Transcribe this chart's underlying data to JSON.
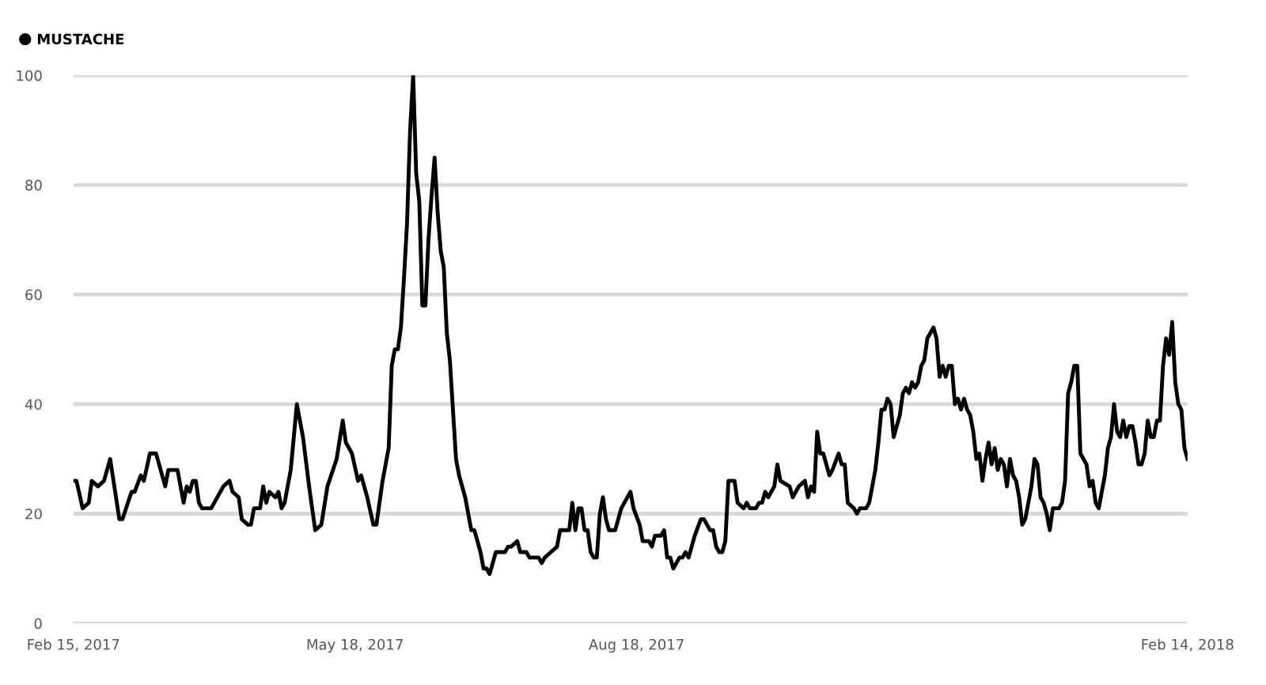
{
  "chart_data": {
    "type": "line",
    "x": [
      "2017-02-15",
      "2017-02-16",
      "2017-02-18",
      "2017-02-20",
      "2017-02-21",
      "2017-02-23",
      "2017-02-25",
      "2017-02-27",
      "2017-03-02",
      "2017-03-03",
      "2017-03-06",
      "2017-03-07",
      "2017-03-09",
      "2017-03-10",
      "2017-03-12",
      "2017-03-14",
      "2017-03-17",
      "2017-03-18",
      "2017-03-21",
      "2017-03-23",
      "2017-03-24",
      "2017-03-25",
      "2017-03-26",
      "2017-03-27",
      "2017-03-28",
      "2017-03-29",
      "2017-04-01",
      "2017-04-05",
      "2017-04-07",
      "2017-04-08",
      "2017-04-10",
      "2017-04-11",
      "2017-04-13",
      "2017-04-14",
      "2017-04-15",
      "2017-04-17",
      "2017-04-18",
      "2017-04-19",
      "2017-04-20",
      "2017-04-22",
      "2017-04-23",
      "2017-04-24",
      "2017-04-25",
      "2017-04-27",
      "2017-04-29",
      "2017-05-01",
      "2017-05-03",
      "2017-05-05",
      "2017-05-07",
      "2017-05-09",
      "2017-05-12",
      "2017-05-14",
      "2017-05-15",
      "2017-05-17",
      "2017-05-19",
      "2017-05-20",
      "2017-05-22",
      "2017-05-24",
      "2017-05-25",
      "2017-05-27",
      "2017-05-29",
      "2017-05-30",
      "2017-05-31",
      "2017-06-01",
      "2017-06-02",
      "2017-06-03",
      "2017-06-04",
      "2017-06-05",
      "2017-06-06",
      "2017-06-07",
      "2017-06-08",
      "2017-06-09",
      "2017-06-10",
      "2017-06-11",
      "2017-06-12",
      "2017-06-13",
      "2017-06-14",
      "2017-06-15",
      "2017-06-16",
      "2017-06-17",
      "2017-06-18",
      "2017-06-20",
      "2017-06-21",
      "2017-06-23",
      "2017-06-24",
      "2017-06-25",
      "2017-06-26",
      "2017-06-28",
      "2017-06-29",
      "2017-06-30",
      "2017-07-01",
      "2017-07-02",
      "2017-07-03",
      "2017-07-06",
      "2017-07-07",
      "2017-07-08",
      "2017-07-10",
      "2017-07-11",
      "2017-07-13",
      "2017-07-14",
      "2017-07-17",
      "2017-07-18",
      "2017-07-19",
      "2017-07-21",
      "2017-07-23",
      "2017-07-24",
      "2017-07-27",
      "2017-07-28",
      "2017-07-29",
      "2017-07-30",
      "2017-07-31",
      "2017-08-01",
      "2017-08-02",
      "2017-08-03",
      "2017-08-04",
      "2017-08-05",
      "2017-08-06",
      "2017-08-07",
      "2017-08-08",
      "2017-08-09",
      "2017-08-11",
      "2017-08-13",
      "2017-08-14",
      "2017-08-16",
      "2017-08-17",
      "2017-08-19",
      "2017-08-20",
      "2017-08-22",
      "2017-08-23",
      "2017-08-24",
      "2017-08-26",
      "2017-08-27",
      "2017-08-28",
      "2017-08-29",
      "2017-08-30",
      "2017-09-01",
      "2017-09-02",
      "2017-09-03",
      "2017-09-04",
      "2017-09-06",
      "2017-09-08",
      "2017-09-09",
      "2017-09-11",
      "2017-09-12",
      "2017-09-13",
      "2017-09-14",
      "2017-09-15",
      "2017-09-16",
      "2017-09-17",
      "2017-09-19",
      "2017-09-20",
      "2017-09-22",
      "2017-09-23",
      "2017-09-24",
      "2017-09-26",
      "2017-09-27",
      "2017-09-28",
      "2017-09-29",
      "2017-09-30",
      "2017-10-02",
      "2017-10-03",
      "2017-10-04",
      "2017-10-07",
      "2017-10-08",
      "2017-10-10",
      "2017-10-12",
      "2017-10-13",
      "2017-10-14",
      "2017-10-15",
      "2017-10-16",
      "2017-10-17",
      "2017-10-18",
      "2017-10-20",
      "2017-10-21",
      "2017-10-23",
      "2017-10-24",
      "2017-10-25",
      "2017-10-26",
      "2017-10-28",
      "2017-10-29",
      "2017-10-30",
      "2017-11-01",
      "2017-11-02",
      "2017-11-04",
      "2017-11-05",
      "2017-11-06",
      "2017-11-07",
      "2017-11-08",
      "2017-11-09",
      "2017-11-10",
      "2017-11-12",
      "2017-11-13",
      "2017-11-14",
      "2017-11-15",
      "2017-11-16",
      "2017-11-17",
      "2017-11-18",
      "2017-11-19",
      "2017-11-20",
      "2017-11-21",
      "2017-11-23",
      "2017-11-24",
      "2017-11-25",
      "2017-11-26",
      "2017-11-27",
      "2017-11-28",
      "2017-11-29",
      "2017-11-30",
      "2017-12-01",
      "2017-12-02",
      "2017-12-03",
      "2017-12-04",
      "2017-12-05",
      "2017-12-06",
      "2017-12-07",
      "2017-12-08",
      "2017-12-09",
      "2017-12-10",
      "2017-12-11",
      "2017-12-12",
      "2017-12-13",
      "2017-12-14",
      "2017-12-15",
      "2017-12-16",
      "2017-12-17",
      "2017-12-18",
      "2017-12-19",
      "2017-12-20",
      "2017-12-21",
      "2017-12-22",
      "2017-12-23",
      "2017-12-25",
      "2017-12-26",
      "2017-12-27",
      "2017-12-28",
      "2017-12-29",
      "2017-12-30",
      "2017-12-31",
      "2018-01-01",
      "2018-01-03",
      "2018-01-04",
      "2018-01-05",
      "2018-01-06",
      "2018-01-07",
      "2018-01-08",
      "2018-01-09",
      "2018-01-10",
      "2018-01-11",
      "2018-01-12",
      "2018-01-13",
      "2018-01-14",
      "2018-01-15",
      "2018-01-16",
      "2018-01-17",
      "2018-01-18",
      "2018-01-19",
      "2018-01-20",
      "2018-01-21",
      "2018-01-22",
      "2018-01-23",
      "2018-01-24",
      "2018-01-25",
      "2018-01-26",
      "2018-01-27",
      "2018-01-28",
      "2018-01-29",
      "2018-01-30",
      "2018-01-31",
      "2018-02-01",
      "2018-02-02",
      "2018-02-03",
      "2018-02-04",
      "2018-02-05",
      "2018-02-06",
      "2018-02-07",
      "2018-02-08",
      "2018-02-09",
      "2018-02-10",
      "2018-02-11",
      "2018-02-12",
      "2018-02-13",
      "2018-02-14"
    ],
    "series": [
      {
        "name": "MUSTACHE",
        "color": "#000000",
        "values": [
          26,
          26,
          21,
          22,
          26,
          25,
          26,
          30,
          19,
          19,
          24,
          24,
          27,
          26,
          31,
          31,
          25,
          28,
          28,
          22,
          25,
          24,
          26,
          26,
          22,
          21,
          21,
          25,
          26,
          24,
          23,
          19,
          18,
          18,
          21,
          21,
          25,
          22,
          24,
          23,
          24,
          21,
          22,
          28,
          40,
          34,
          25,
          17,
          18,
          25,
          30,
          37,
          33,
          31,
          26,
          27,
          23,
          18,
          18,
          26,
          32,
          47,
          50,
          50,
          54,
          63,
          73,
          90,
          100,
          82,
          77,
          58,
          58,
          70,
          78,
          85,
          75,
          68,
          65,
          53,
          48,
          30,
          27,
          23,
          20,
          17,
          17,
          13,
          10,
          10,
          9,
          11,
          13,
          13,
          14,
          14,
          15,
          13,
          13,
          12,
          12,
          11,
          12,
          13,
          14,
          17,
          17,
          22,
          17,
          21,
          21,
          17,
          17,
          13,
          12,
          12,
          20,
          23,
          19,
          17,
          17,
          21,
          22,
          24,
          21,
          18,
          15,
          15,
          14,
          16,
          16,
          17,
          12,
          12,
          10,
          12,
          12,
          13,
          12,
          16,
          19,
          19,
          17,
          17,
          14,
          13,
          13,
          15,
          26,
          26,
          22,
          21,
          22,
          21,
          21,
          22,
          22,
          24,
          23,
          25,
          29,
          26,
          25,
          23,
          25,
          26,
          23,
          25,
          24,
          35,
          31,
          31,
          27,
          28,
          31,
          29,
          29,
          22,
          21,
          20,
          21,
          21,
          22,
          28,
          33,
          39,
          39,
          41,
          40,
          34,
          38,
          42,
          43,
          42,
          44,
          43,
          44,
          47,
          48,
          52,
          54,
          52,
          45,
          47,
          45,
          47,
          47,
          40,
          41,
          39,
          41,
          39,
          38,
          35,
          30,
          31,
          26,
          30,
          33,
          29,
          32,
          28,
          30,
          29,
          25,
          30,
          27,
          26,
          23,
          18,
          19,
          25,
          30,
          29,
          23,
          22,
          20,
          17,
          21,
          21,
          22,
          26,
          42,
          44,
          47,
          47,
          31,
          30,
          29,
          25,
          26,
          22,
          21,
          24,
          27,
          32,
          34,
          40,
          35,
          34,
          37,
          34,
          36,
          36,
          33,
          29,
          29,
          31,
          37,
          34,
          34,
          37,
          37,
          47,
          52,
          49,
          55,
          44,
          40,
          39,
          32,
          30
        ]
      }
    ],
    "xlim": [
      "2017-02-15",
      "2018-02-14"
    ],
    "xticks": [
      {
        "value": "2017-02-15",
        "label": "Feb 15, 2017"
      },
      {
        "value": "2017-05-18",
        "label": "May 18, 2017"
      },
      {
        "value": "2017-08-18",
        "label": "Aug 18, 2017"
      },
      {
        "value": "2018-02-14",
        "label": "Feb 14, 2018"
      }
    ],
    "ylim": [
      0,
      100
    ],
    "yticks": [
      0,
      20,
      40,
      60,
      80,
      100
    ],
    "grid": "y",
    "legend": "top left",
    "marker": "none",
    "line_style": "solid"
  }
}
